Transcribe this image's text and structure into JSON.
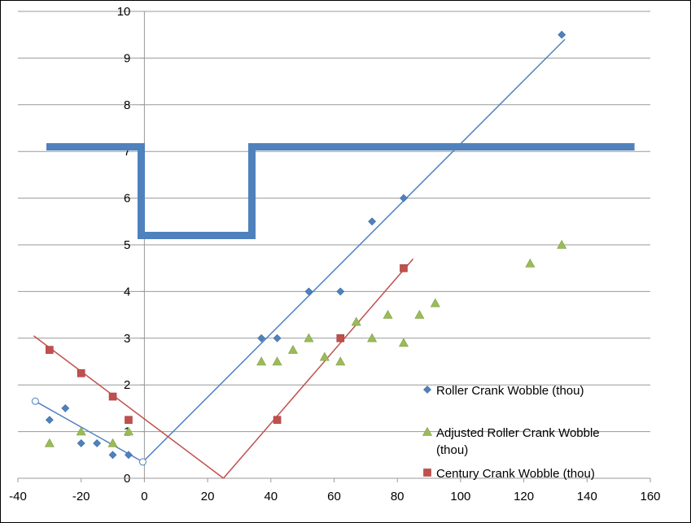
{
  "chart_data": {
    "type": "scatter",
    "title": "",
    "xlabel": "",
    "ylabel": "",
    "xlim": [
      -40,
      160
    ],
    "ylim": [
      0,
      10
    ],
    "x_ticks": [
      -40,
      -20,
      0,
      20,
      40,
      60,
      80,
      100,
      120,
      140,
      160
    ],
    "y_ticks": [
      0,
      1,
      2,
      3,
      4,
      5,
      6,
      7,
      8,
      9,
      10
    ],
    "grid": "horizontal",
    "legend_position": "bottom-right",
    "series": [
      {
        "name": "Roller Crank Wobble (thou)",
        "marker": "diamond",
        "color": "#4f81bd",
        "points": [
          [
            -30,
            1.25
          ],
          [
            -25,
            1.5
          ],
          [
            -20,
            0.75
          ],
          [
            -15,
            0.75
          ],
          [
            -10,
            0.5
          ],
          [
            -5,
            0.5
          ],
          [
            37,
            3
          ],
          [
            42,
            3
          ],
          [
            52,
            4
          ],
          [
            62,
            4
          ],
          [
            72,
            5.5
          ],
          [
            82,
            6
          ],
          [
            132,
            9.5
          ]
        ]
      },
      {
        "name": "Adjusted Roller Crank Wobble (thou)",
        "marker": "triangle",
        "color": "#9bbb59",
        "points": [
          [
            -30,
            0.75
          ],
          [
            -20,
            1
          ],
          [
            -10,
            0.75
          ],
          [
            -5,
            1
          ],
          [
            37,
            2.5
          ],
          [
            42,
            2.5
          ],
          [
            47,
            2.75
          ],
          [
            52,
            3
          ],
          [
            57,
            2.6
          ],
          [
            62,
            2.5
          ],
          [
            67,
            3.35
          ],
          [
            72,
            3
          ],
          [
            77,
            3.5
          ],
          [
            82,
            2.9
          ],
          [
            87,
            3.5
          ],
          [
            92,
            3.75
          ],
          [
            122,
            4.6
          ],
          [
            132,
            5
          ]
        ]
      },
      {
        "name": "Century Crank Wobble (thou)",
        "marker": "square",
        "color": "#c0504d",
        "points": [
          [
            -30,
            2.75
          ],
          [
            -20,
            2.25
          ],
          [
            -10,
            1.75
          ],
          [
            -5,
            1.25
          ],
          [
            42,
            1.25
          ],
          [
            62,
            3
          ],
          [
            82,
            4.5
          ]
        ]
      }
    ],
    "lines": [
      {
        "color": "#4f81bd",
        "width": 1.5,
        "points": [
          [
            -34.5,
            1.65
          ],
          [
            -0.5,
            0.35
          ]
        ]
      },
      {
        "color": "#4f81bd",
        "width": 1.5,
        "points": [
          [
            -0.5,
            0.35
          ],
          [
            133,
            9.4
          ]
        ]
      },
      {
        "color": "#c0504d",
        "width": 1.5,
        "points": [
          [
            -35,
            3.05
          ],
          [
            25,
            0
          ]
        ]
      },
      {
        "color": "#c0504d",
        "width": 1.5,
        "points": [
          [
            25,
            0
          ],
          [
            85,
            4.7
          ]
        ]
      },
      {
        "color": "#4f81bd",
        "width": 9,
        "points": [
          [
            -31,
            7.1
          ],
          [
            -1,
            7.1
          ],
          [
            -1,
            5.2
          ],
          [
            34,
            5.2
          ],
          [
            34,
            7.1
          ],
          [
            155,
            7.1
          ]
        ]
      }
    ],
    "open_circles": [
      [
        -34.5,
        1.65
      ],
      [
        -0.5,
        0.35
      ]
    ]
  }
}
